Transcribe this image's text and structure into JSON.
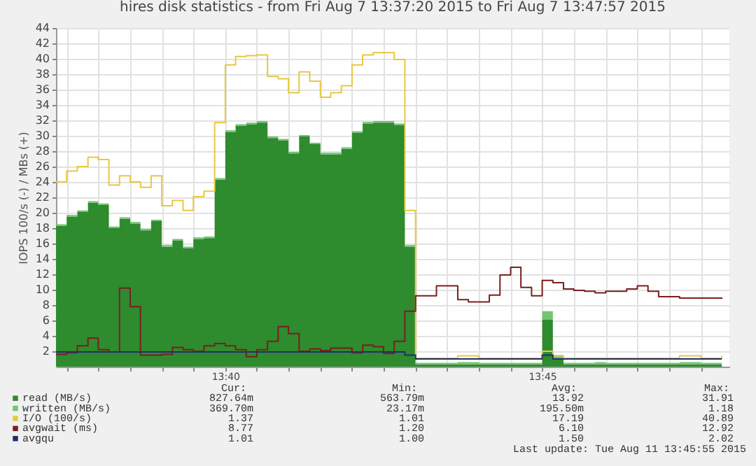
{
  "chart_data": {
    "type": "area",
    "title": "hires disk statistics - from Fri Aug  7 13:37:20 2015 to Fri Aug  7 13:47:57 2015",
    "ylabel": "IOPS 100/s (-) / MBs (+)",
    "x": [
      13.6222,
      13.625,
      13.6278,
      13.6306,
      13.6333,
      13.6361,
      13.6389,
      13.6417,
      13.6444,
      13.6472,
      13.65,
      13.6528,
      13.6556,
      13.6583,
      13.6611,
      13.6639,
      13.6667,
      13.6694,
      13.6722,
      13.675,
      13.6778,
      13.6806,
      13.6833,
      13.6861,
      13.6889,
      13.6917,
      13.6944,
      13.6972,
      13.7,
      13.7028,
      13.7056,
      13.7083,
      13.7111,
      13.7139,
      13.7167,
      13.7194,
      13.7222,
      13.725,
      13.7278,
      13.7306,
      13.7333,
      13.7361,
      13.7389,
      13.7417,
      13.7444,
      13.7472,
      13.75,
      13.7528,
      13.7556,
      13.7583,
      13.7611,
      13.7639,
      13.7667,
      13.7694,
      13.7722,
      13.775,
      13.7778,
      13.7806,
      13.7833,
      13.7861,
      13.7889,
      13.7917,
      13.7944,
      13.7972
    ],
    "stacked": true,
    "series": [
      {
        "name": "read (MB/s)",
        "color": "#2e8b2e",
        "values": [
          18.3,
          19.5,
          20.1,
          21.3,
          21.0,
          18.0,
          19.2,
          18.6,
          17.7,
          18.9,
          15.6,
          16.4,
          15.4,
          16.6,
          16.7,
          24.3,
          30.5,
          31.3,
          31.5,
          31.7,
          29.7,
          29.4,
          27.7,
          29.9,
          28.9,
          27.6,
          27.6,
          28.3,
          30.4,
          31.6,
          31.7,
          31.7,
          31.4,
          15.6,
          0.3,
          0.3,
          0.3,
          0.3,
          0.3,
          0.3,
          0.3,
          0.3,
          0.3,
          0.3,
          0.3,
          0.3,
          6.1,
          1.0,
          0.3,
          0.3,
          0.3,
          0.3,
          0.3,
          0.3,
          0.3,
          0.3,
          0.3,
          0.3,
          0.3,
          0.3,
          0.3,
          0.3,
          0.3,
          0.3
        ]
      },
      {
        "name": "written (MB/s)",
        "color": "#74c474",
        "values": [
          0.2,
          0.2,
          0.2,
          0.2,
          0.2,
          0.2,
          0.2,
          0.2,
          0.2,
          0.2,
          0.2,
          0.2,
          0.2,
          0.2,
          0.2,
          0.2,
          0.2,
          0.2,
          0.2,
          0.2,
          0.2,
          0.2,
          0.2,
          0.2,
          0.2,
          0.2,
          0.2,
          0.2,
          0.2,
          0.2,
          0.2,
          0.2,
          0.2,
          0.2,
          0.2,
          0.2,
          0.2,
          0.2,
          0.3,
          0.3,
          0.2,
          0.2,
          0.2,
          0.2,
          0.2,
          0.2,
          1.1,
          0.5,
          0.2,
          0.2,
          0.2,
          0.3,
          0.2,
          0.2,
          0.2,
          0.2,
          0.2,
          0.2,
          0.2,
          0.3,
          0.3,
          0.2,
          0.2,
          0.2
        ]
      },
      {
        "name": "I/O (100/s)",
        "type": "step",
        "color": "#e8c840",
        "values": [
          24.0,
          25.4,
          26.0,
          27.2,
          26.9,
          23.6,
          24.8,
          24.0,
          23.3,
          24.8,
          20.9,
          21.6,
          20.3,
          22.1,
          22.8,
          31.7,
          39.2,
          40.3,
          40.4,
          40.5,
          37.7,
          37.4,
          35.6,
          38.3,
          37.1,
          35.0,
          35.6,
          36.5,
          39.2,
          40.5,
          40.8,
          40.8,
          39.9,
          20.3,
          1.1,
          1.1,
          1.1,
          1.1,
          1.4,
          1.4,
          1.1,
          1.1,
          1.1,
          1.1,
          1.1,
          1.1,
          2.0,
          1.4,
          1.1,
          1.1,
          1.1,
          1.1,
          1.1,
          1.1,
          1.1,
          1.1,
          1.1,
          1.1,
          1.1,
          1.4,
          1.4,
          1.1,
          1.1,
          1.4
        ]
      },
      {
        "name": "avgwait (ms)",
        "type": "step",
        "color": "#7a1f1f",
        "values": [
          1.6,
          1.8,
          2.7,
          3.7,
          2.2,
          1.9,
          10.2,
          7.8,
          1.5,
          1.5,
          1.6,
          2.5,
          2.2,
          2.0,
          2.7,
          3.0,
          2.7,
          2.2,
          1.3,
          2.2,
          3.3,
          5.2,
          4.3,
          2.0,
          2.3,
          2.1,
          2.4,
          2.4,
          1.8,
          2.8,
          2.6,
          1.7,
          3.3,
          7.2,
          9.2,
          9.2,
          10.5,
          10.5,
          8.7,
          8.4,
          8.4,
          9.3,
          11.9,
          12.9,
          10.3,
          9.2,
          11.2,
          10.9,
          10.1,
          9.9,
          9.8,
          9.6,
          9.8,
          9.8,
          10.1,
          10.5,
          9.8,
          9.1,
          9.1,
          8.9,
          8.9,
          8.9,
          8.9,
          8.8
        ]
      },
      {
        "name": "avgqu",
        "type": "step",
        "color": "#1f2f6f",
        "values": [
          1.9,
          1.9,
          1.9,
          1.9,
          1.9,
          1.9,
          1.9,
          1.9,
          1.9,
          1.9,
          1.9,
          1.9,
          1.9,
          1.9,
          1.9,
          1.9,
          1.9,
          1.9,
          1.9,
          1.9,
          1.9,
          1.9,
          1.9,
          1.9,
          1.9,
          1.9,
          1.9,
          1.9,
          1.9,
          1.9,
          1.9,
          1.9,
          1.9,
          1.5,
          1.0,
          1.0,
          1.0,
          1.0,
          1.0,
          1.0,
          1.0,
          1.0,
          1.0,
          1.0,
          1.0,
          1.0,
          1.5,
          1.0,
          1.0,
          1.0,
          1.0,
          1.0,
          1.0,
          1.0,
          1.0,
          1.0,
          1.0,
          1.0,
          1.0,
          1.0,
          1.0,
          1.0,
          1.0,
          1.0
        ]
      }
    ],
    "xlim": [
      13.6222,
      13.7992
    ],
    "xticks": [
      {
        "value": 13.625,
        "label": null
      },
      {
        "value": 13.6333,
        "label": null
      },
      {
        "value": 13.6417,
        "label": null
      },
      {
        "value": 13.65,
        "label": null
      },
      {
        "value": 13.6583,
        "label": null
      },
      {
        "value": 13.6667,
        "label": "13:40"
      },
      {
        "value": 13.675,
        "label": null
      },
      {
        "value": 13.6833,
        "label": null
      },
      {
        "value": 13.6917,
        "label": null
      },
      {
        "value": 13.7,
        "label": null
      },
      {
        "value": 13.7083,
        "label": null
      },
      {
        "value": 13.7167,
        "label": null
      },
      {
        "value": 13.725,
        "label": null
      },
      {
        "value": 13.7333,
        "label": null
      },
      {
        "value": 13.7417,
        "label": null
      },
      {
        "value": 13.75,
        "label": "13:45"
      },
      {
        "value": 13.7583,
        "label": null
      },
      {
        "value": 13.7667,
        "label": null
      },
      {
        "value": 13.775,
        "label": null
      },
      {
        "value": 13.7833,
        "label": null
      },
      {
        "value": 13.7917,
        "label": null
      }
    ],
    "ylim": [
      0,
      44
    ],
    "yticks": [
      2,
      4,
      6,
      8,
      10,
      12,
      14,
      16,
      18,
      20,
      22,
      24,
      26,
      28,
      30,
      32,
      34,
      36,
      38,
      40,
      42,
      44
    ],
    "grid": true,
    "legend": "bottom left",
    "annotations": [
      "Cur:",
      "Min:",
      "Avg:",
      "Max:",
      "827.64m",
      "563.79m",
      "13.92",
      "31.91",
      "369.70m",
      "23.17m",
      "195.50m",
      "1.18",
      "1.37",
      "1.01",
      "17.19",
      "40.89",
      "8.77",
      "1.20",
      "6.10",
      "12.92",
      "1.01",
      "1.00",
      "1.50",
      "2.02",
      "Last update:  Tue Aug 11 13:45:55 2015"
    ]
  }
}
